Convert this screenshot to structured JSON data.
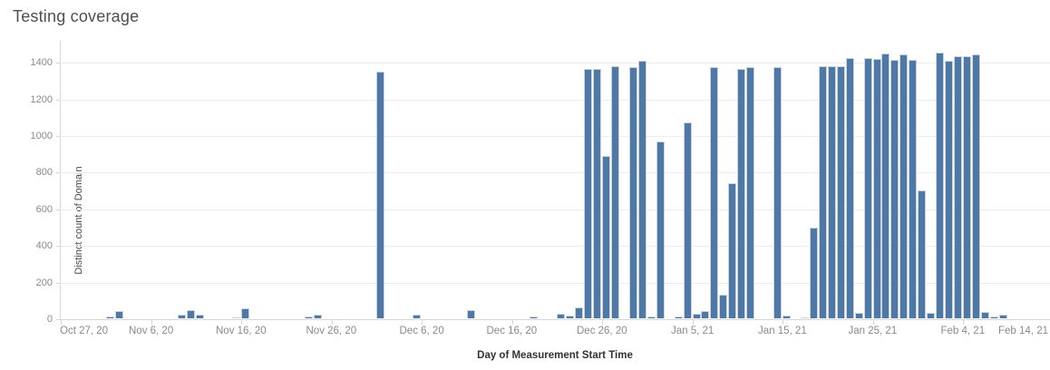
{
  "title": "Testing coverage",
  "chart_data": {
    "type": "bar",
    "title": "Testing coverage",
    "xlabel": "Day of Measurement Start Time",
    "ylabel": "Distinct count of Domain",
    "ylim": [
      0,
      1520
    ],
    "y_ticks": [
      0,
      200,
      400,
      600,
      800,
      1000,
      1200,
      1400
    ],
    "x_start_date": "2020-10-27",
    "x_ticks": [
      {
        "date": "2020-10-27",
        "label": "Oct 27, 20"
      },
      {
        "date": "2020-11-06",
        "label": "Nov 6, 20"
      },
      {
        "date": "2020-11-16",
        "label": "Nov 16, 20"
      },
      {
        "date": "2020-11-26",
        "label": "Nov 26, 20"
      },
      {
        "date": "2020-12-06",
        "label": "Dec 6, 20"
      },
      {
        "date": "2020-12-16",
        "label": "Dec 16, 20"
      },
      {
        "date": "2020-12-26",
        "label": "Dec 26, 20"
      },
      {
        "date": "2021-01-05",
        "label": "Jan 5, 21"
      },
      {
        "date": "2021-01-15",
        "label": "Jan 15, 21"
      },
      {
        "date": "2021-01-25",
        "label": "Jan 25, 21"
      },
      {
        "date": "2021-02-04",
        "label": "Feb 4, 21"
      },
      {
        "date": "2021-02-14",
        "label": "Feb 14, 21"
      }
    ],
    "grid": "horizontal",
    "legend": "none",
    "bar_color": "#4e79a7",
    "points": [
      {
        "date": "2020-11-01",
        "value": 8
      },
      {
        "date": "2020-11-02",
        "value": 40
      },
      {
        "date": "2020-11-09",
        "value": 22
      },
      {
        "date": "2020-11-10",
        "value": 45
      },
      {
        "date": "2020-11-11",
        "value": 22
      },
      {
        "date": "2020-11-15",
        "value": 6
      },
      {
        "date": "2020-11-16",
        "value": 55
      },
      {
        "date": "2020-11-23",
        "value": 10
      },
      {
        "date": "2020-11-24",
        "value": 22
      },
      {
        "date": "2020-12-01",
        "value": 1345
      },
      {
        "date": "2020-12-05",
        "value": 22
      },
      {
        "date": "2020-12-11",
        "value": 45
      },
      {
        "date": "2020-12-18",
        "value": 9
      },
      {
        "date": "2020-12-21",
        "value": 27
      },
      {
        "date": "2020-12-22",
        "value": 17
      },
      {
        "date": "2020-12-23",
        "value": 60
      },
      {
        "date": "2020-12-24",
        "value": 1360
      },
      {
        "date": "2020-12-25",
        "value": 1360
      },
      {
        "date": "2020-12-26",
        "value": 885
      },
      {
        "date": "2020-12-27",
        "value": 1375
      },
      {
        "date": "2020-12-29",
        "value": 1372
      },
      {
        "date": "2020-12-30",
        "value": 1408
      },
      {
        "date": "2020-12-31",
        "value": 10
      },
      {
        "date": "2021-01-01",
        "value": 965
      },
      {
        "date": "2021-01-03",
        "value": 8
      },
      {
        "date": "2021-01-04",
        "value": 1067
      },
      {
        "date": "2021-01-05",
        "value": 25
      },
      {
        "date": "2021-01-06",
        "value": 38
      },
      {
        "date": "2021-01-07",
        "value": 1372
      },
      {
        "date": "2021-01-08",
        "value": 127
      },
      {
        "date": "2021-01-09",
        "value": 740
      },
      {
        "date": "2021-01-10",
        "value": 1361
      },
      {
        "date": "2021-01-11",
        "value": 1372
      },
      {
        "date": "2021-01-14",
        "value": 1372
      },
      {
        "date": "2021-01-15",
        "value": 16
      },
      {
        "date": "2021-01-17",
        "value": 6
      },
      {
        "date": "2021-01-18",
        "value": 493
      },
      {
        "date": "2021-01-19",
        "value": 1378
      },
      {
        "date": "2021-01-20",
        "value": 1378
      },
      {
        "date": "2021-01-21",
        "value": 1378
      },
      {
        "date": "2021-01-22",
        "value": 1422
      },
      {
        "date": "2021-01-23",
        "value": 30
      },
      {
        "date": "2021-01-24",
        "value": 1420
      },
      {
        "date": "2021-01-25",
        "value": 1418
      },
      {
        "date": "2021-01-26",
        "value": 1448
      },
      {
        "date": "2021-01-27",
        "value": 1412
      },
      {
        "date": "2021-01-28",
        "value": 1442
      },
      {
        "date": "2021-01-29",
        "value": 1412
      },
      {
        "date": "2021-01-30",
        "value": 696
      },
      {
        "date": "2021-01-31",
        "value": 30
      },
      {
        "date": "2021-02-01",
        "value": 1450
      },
      {
        "date": "2021-02-02",
        "value": 1408
      },
      {
        "date": "2021-02-03",
        "value": 1431
      },
      {
        "date": "2021-02-04",
        "value": 1431
      },
      {
        "date": "2021-02-05",
        "value": 1442
      },
      {
        "date": "2021-02-06",
        "value": 33
      },
      {
        "date": "2021-02-07",
        "value": 11
      },
      {
        "date": "2021-02-08",
        "value": 18
      }
    ]
  },
  "colors": {
    "bar": "#4e79a7",
    "bar_border": "#ccd3dc",
    "gridline": "#ececec",
    "axis_line": "#d6d6d6",
    "tick_label": "#8a8a8a",
    "title_text": "#4f4f4f",
    "axis_title_text": "#333333",
    "background": "#ffffff"
  }
}
